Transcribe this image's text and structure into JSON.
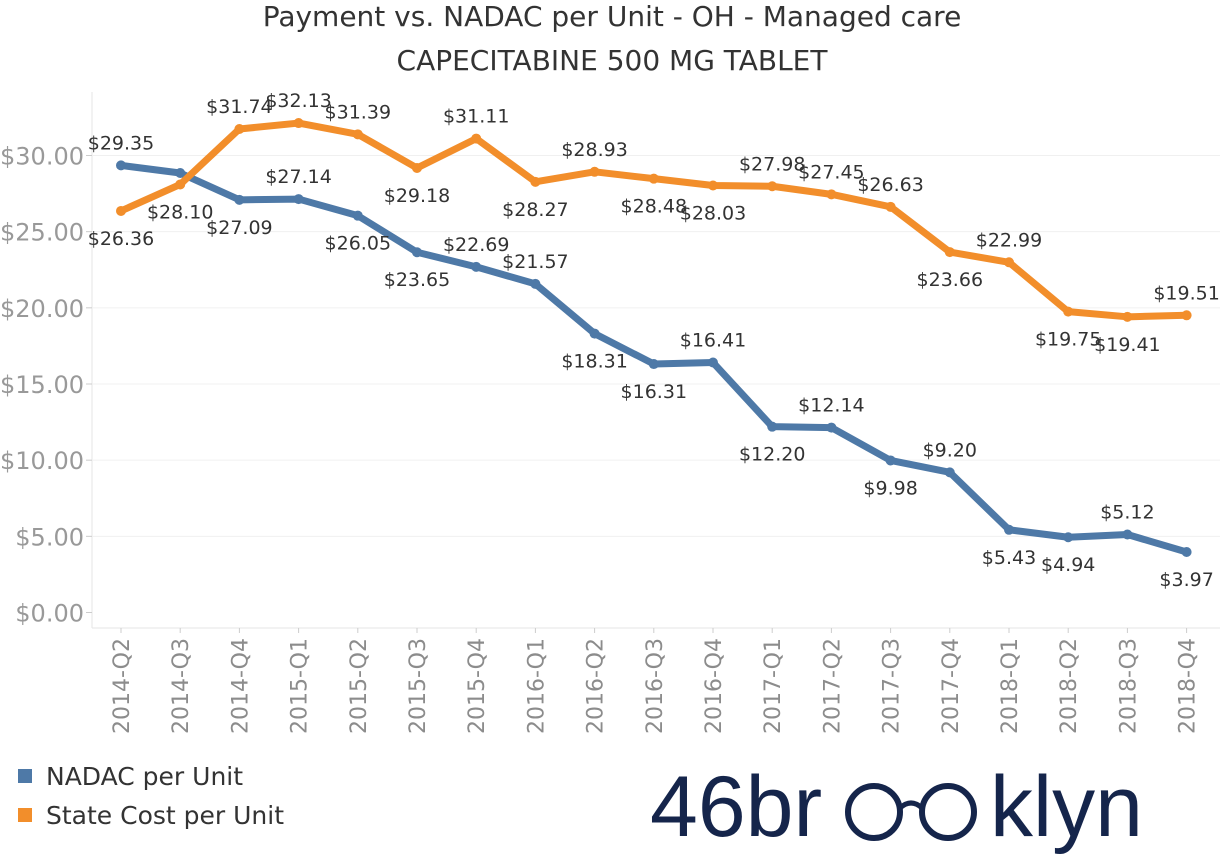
{
  "chart_data": {
    "type": "line",
    "title": "Payment vs. NADAC per Unit - OH - Managed care",
    "subtitle": "CAPECITABINE 500 MG TABLET",
    "xlabel": "",
    "ylabel": "",
    "ylim": [
      0,
      33
    ],
    "y_ticks": [
      0,
      5,
      10,
      15,
      20,
      25,
      30
    ],
    "y_tick_labels": [
      "$0.00",
      "$5.00",
      "$10.00",
      "$15.00",
      "$20.00",
      "$25.00",
      "$30.00"
    ],
    "grid": true,
    "legend_position": "bottom-left",
    "categories": [
      "2014-Q2",
      "2014-Q3",
      "2014-Q4",
      "2015-Q1",
      "2015-Q2",
      "2015-Q3",
      "2015-Q4",
      "2016-Q1",
      "2016-Q2",
      "2016-Q3",
      "2016-Q4",
      "2017-Q1",
      "2017-Q2",
      "2017-Q3",
      "2017-Q4",
      "2018-Q1",
      "2018-Q2",
      "2018-Q3",
      "2018-Q4"
    ],
    "series": [
      {
        "name": "NADAC per Unit",
        "color": "#4e79a7",
        "values": [
          29.35,
          28.85,
          27.09,
          27.14,
          26.05,
          23.65,
          22.69,
          21.57,
          18.31,
          16.31,
          16.41,
          12.2,
          12.14,
          9.98,
          9.2,
          5.43,
          4.94,
          5.12,
          3.97
        ],
        "labels": [
          "$29.35",
          "",
          "$27.09",
          "$27.14",
          "$26.05",
          "$23.65",
          "$22.69",
          "$21.57",
          "$18.31",
          "$16.31",
          "$16.41",
          "$12.20",
          "$12.14",
          "$9.98",
          "$9.20",
          "$5.43",
          "$4.94",
          "$5.12",
          "$3.97"
        ],
        "label_pos": [
          "above",
          "",
          "below",
          "above",
          "below",
          "below",
          "above",
          "above",
          "below",
          "below",
          "above",
          "below",
          "above",
          "below",
          "above",
          "below",
          "below",
          "above",
          "below"
        ]
      },
      {
        "name": "State Cost per Unit",
        "color": "#f28e2b",
        "values": [
          26.36,
          28.1,
          31.74,
          32.13,
          31.39,
          29.18,
          31.11,
          28.27,
          28.93,
          28.48,
          28.03,
          27.98,
          27.45,
          26.63,
          23.66,
          22.99,
          19.75,
          19.41,
          19.51
        ],
        "labels": [
          "$26.36",
          "$28.10",
          "$31.74",
          "$32.13",
          "$31.39",
          "$29.18",
          "$31.11",
          "$28.27",
          "$28.93",
          "$28.48",
          "$28.03",
          "$27.98",
          "$27.45",
          "$26.63",
          "$23.66",
          "$22.99",
          "$19.75",
          "$19.41",
          "$19.51"
        ],
        "label_pos": [
          "below",
          "below",
          "above",
          "above",
          "above",
          "below",
          "above",
          "below",
          "above",
          "below",
          "below",
          "above",
          "above",
          "above",
          "below",
          "above",
          "below",
          "below",
          "above"
        ]
      }
    ]
  },
  "logo": {
    "text_left": "46br",
    "text_right": "klyn",
    "color": "#15254b"
  }
}
